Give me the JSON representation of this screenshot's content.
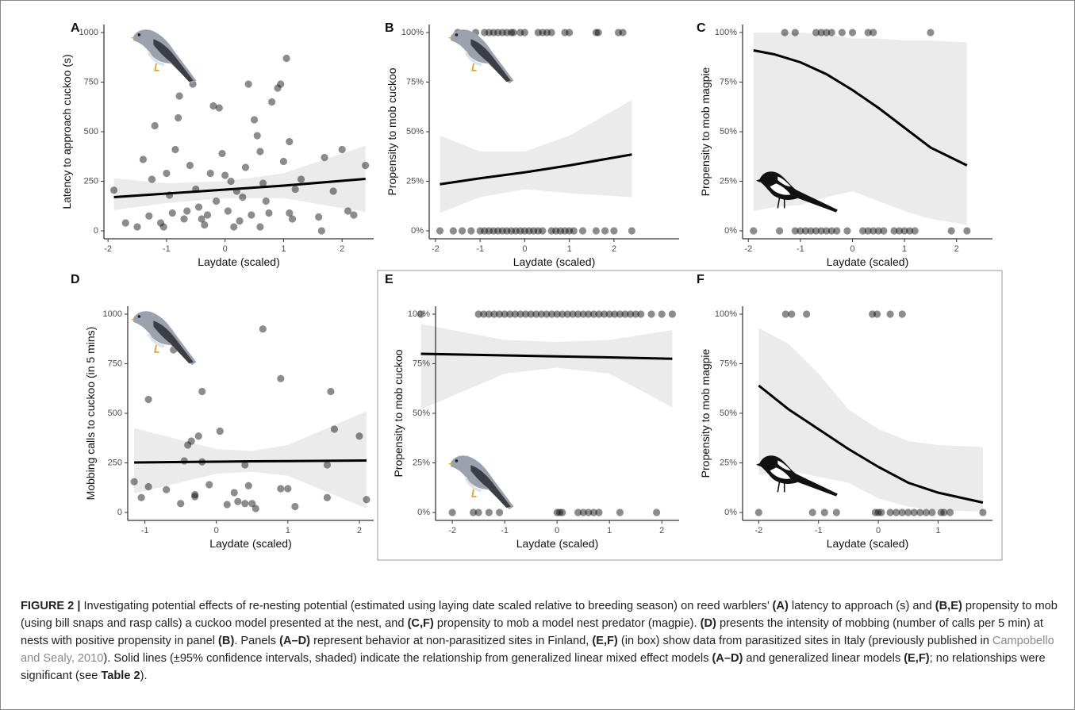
{
  "chart_data": [
    {
      "type": "scatter",
      "panel": "A",
      "xlabel": "Laydate (scaled)",
      "ylabel": "Latency to approach cuckoo (s)",
      "xlim": [
        -2.07,
        2.54
      ],
      "ylim": [
        -40,
        1040
      ],
      "xticks": [
        -2,
        -1,
        0,
        1,
        2
      ],
      "yticks": [
        0,
        250,
        500,
        750,
        1000
      ],
      "x": [
        -1.9,
        -1.7,
        -1.5,
        -1.4,
        -1.3,
        -1.2,
        -1.1,
        -1.05,
        -1.0,
        -0.95,
        -0.9,
        -0.85,
        -0.8,
        -0.78,
        -0.7,
        -0.6,
        -0.55,
        -0.5,
        -0.45,
        -0.4,
        -0.3,
        -0.25,
        -0.2,
        -0.1,
        -0.05,
        0.0,
        0.05,
        0.1,
        0.15,
        0.2,
        0.3,
        0.35,
        0.4,
        0.45,
        0.5,
        0.55,
        0.6,
        0.65,
        0.7,
        0.8,
        0.9,
        0.95,
        1.0,
        1.05,
        1.1,
        1.1,
        1.2,
        1.3,
        1.6,
        1.65,
        1.7,
        1.85,
        2.0,
        2.1,
        2.2,
        2.4,
        -0.35,
        0.25,
        -0.65,
        0.75,
        -0.15,
        0.6,
        1.15,
        -1.25
      ],
      "y": [
        205,
        40,
        20,
        360,
        75,
        530,
        40,
        20,
        290,
        180,
        90,
        410,
        570,
        680,
        60,
        330,
        740,
        210,
        120,
        60,
        80,
        290,
        630,
        620,
        390,
        280,
        100,
        250,
        20,
        200,
        170,
        320,
        740,
        80,
        560,
        480,
        400,
        240,
        150,
        650,
        720,
        740,
        350,
        870,
        450,
        90,
        210,
        260,
        70,
        0,
        370,
        200,
        410,
        100,
        80,
        330,
        30,
        50,
        100,
        90,
        150,
        20,
        60,
        260
      ],
      "fit_x": [
        -1.9,
        -1,
        0,
        1,
        2.4
      ],
      "fit_y": [
        170,
        188,
        208,
        228,
        262
      ],
      "fit_lower": [
        105,
        140,
        165,
        165,
        95
      ],
      "fit_upper": [
        265,
        240,
        250,
        290,
        430
      ]
    },
    {
      "type": "scatter",
      "panel": "B",
      "xlabel": "Laydate (scaled)",
      "ylabel": "Propensity to mob cuckoo",
      "xlim": [
        -2.14,
        3.46
      ],
      "ylim": [
        -4,
        104
      ],
      "xticks": [
        -2,
        -1,
        0,
        1,
        2
      ],
      "yticks": [
        {
          "value": 0,
          "label": "0%"
        },
        {
          "value": 25,
          "label": "25%"
        },
        {
          "value": 50,
          "label": "50%"
        },
        {
          "value": 75,
          "label": "75%"
        },
        {
          "value": 100,
          "label": "100%"
        }
      ],
      "x": [
        -1.5,
        -1.1,
        -0.9,
        -0.8,
        -0.7,
        -0.6,
        -0.5,
        -0.4,
        -0.3,
        -0.25,
        -0.1,
        0,
        0.3,
        0.4,
        0.5,
        0.6,
        0.9,
        1.0,
        1.6,
        1.65,
        2.1,
        2.2,
        -1.9,
        -1.6,
        -1.4,
        -1.2,
        -1.0,
        -0.9,
        -0.8,
        -0.7,
        -0.6,
        -0.5,
        -0.4,
        -0.3,
        -0.2,
        -0.1,
        0,
        0.1,
        0.2,
        0.3,
        0.4,
        0.6,
        0.7,
        0.8,
        0.9,
        1.0,
        1.1,
        1.3,
        1.6,
        1.8,
        2.0,
        2.4
      ],
      "y": [
        100,
        100,
        100,
        100,
        100,
        100,
        100,
        100,
        100,
        100,
        100,
        100,
        100,
        100,
        100,
        100,
        100,
        100,
        100,
        100,
        100,
        100,
        0,
        0,
        0,
        0,
        0,
        0,
        0,
        0,
        0,
        0,
        0,
        0,
        0,
        0,
        0,
        0,
        0,
        0,
        0,
        0,
        0,
        0,
        0,
        0,
        0,
        0,
        0,
        0,
        0,
        0
      ],
      "fit_x": [
        -1.9,
        -1,
        0,
        1,
        2.4
      ],
      "fit_y": [
        23.5,
        26.5,
        29.5,
        33,
        38.5
      ],
      "fit_lower": [
        9,
        17,
        21,
        19,
        17
      ],
      "fit_upper": [
        48,
        40,
        40,
        48,
        66
      ]
    },
    {
      "type": "scatter",
      "panel": "C",
      "xlabel": "Laydate (scaled)",
      "ylabel": "Propensity to mob magpie",
      "xlim": [
        -2.11,
        2.69
      ],
      "ylim": [
        -4,
        104
      ],
      "xticks": [
        -2,
        -1,
        0,
        1,
        2
      ],
      "yticks": [
        {
          "value": 0,
          "label": "0%"
        },
        {
          "value": 25,
          "label": "25%"
        },
        {
          "value": 50,
          "label": "50%"
        },
        {
          "value": 75,
          "label": "75%"
        },
        {
          "value": 100,
          "label": "100%"
        }
      ],
      "x": [
        -1.3,
        -1.1,
        -0.7,
        -0.6,
        -0.5,
        -0.4,
        -0.2,
        0,
        0.3,
        0.4,
        1.5,
        -1.9,
        -1.4,
        -1.1,
        -1.0,
        -0.9,
        -0.8,
        -0.7,
        -0.6,
        -0.5,
        -0.4,
        -0.3,
        -0.1,
        0.2,
        0.3,
        0.4,
        0.5,
        0.6,
        0.8,
        0.9,
        1.0,
        1.1,
        1.2,
        1.9,
        2.2
      ],
      "y": [
        100,
        100,
        100,
        100,
        100,
        100,
        100,
        100,
        100,
        100,
        100,
        0,
        0,
        0,
        0,
        0,
        0,
        0,
        0,
        0,
        0,
        0,
        0,
        0,
        0,
        0,
        0,
        0,
        0,
        0,
        0,
        0,
        0,
        0,
        0
      ],
      "fit_x": [
        -1.9,
        -1.5,
        -1,
        -0.5,
        0,
        0.5,
        1,
        1.5,
        2.2
      ],
      "fit_y": [
        91,
        89,
        85,
        79,
        71,
        62,
        52,
        42,
        33
      ],
      "fit_lower": [
        10,
        12,
        13,
        17,
        20,
        15,
        10,
        6,
        3
      ],
      "fit_upper": [
        100,
        100,
        100,
        99,
        97,
        97,
        96,
        96,
        95
      ]
    },
    {
      "type": "scatter",
      "panel": "D",
      "xlabel": "Laydate (scaled)",
      "ylabel": "Mobbing calls to cuckoo (in 5 mins)",
      "xlim": [
        -1.24,
        2.2
      ],
      "ylim": [
        -40,
        1040
      ],
      "xticks": [
        -1,
        0,
        1,
        2
      ],
      "yticks": [
        0,
        250,
        500,
        750,
        1000
      ],
      "x": [
        -1.15,
        -1.05,
        -0.95,
        -0.95,
        -0.7,
        -0.6,
        -0.5,
        -0.45,
        -0.4,
        -0.35,
        -0.3,
        -0.3,
        -0.25,
        -0.2,
        -0.2,
        -0.1,
        0.05,
        0.15,
        0.25,
        0.3,
        0.4,
        0.4,
        0.45,
        0.5,
        0.55,
        0.65,
        0.9,
        0.9,
        1.0,
        1.1,
        1.55,
        1.55,
        1.6,
        1.65,
        2.0,
        2.1
      ],
      "y": [
        155,
        75,
        570,
        130,
        115,
        820,
        45,
        260,
        340,
        360,
        90,
        80,
        385,
        610,
        255,
        140,
        410,
        40,
        100,
        55,
        240,
        45,
        135,
        45,
        20,
        925,
        675,
        120,
        120,
        30,
        75,
        240,
        610,
        420,
        385,
        65
      ],
      "fit_x": [
        -1.15,
        0,
        0.5,
        1,
        2.1
      ],
      "fit_y": [
        252,
        256,
        258,
        259,
        262
      ],
      "fit_lower": [
        95,
        195,
        205,
        185,
        20
      ],
      "fit_upper": [
        425,
        320,
        310,
        340,
        510
      ]
    },
    {
      "type": "scatter",
      "panel": "E",
      "xlabel": "Laydate (scaled)",
      "ylabel": "Propensity to mob cuckoo",
      "xlim": [
        -2.32,
        2.33
      ],
      "ylim": [
        -4,
        104
      ],
      "xticks": [
        -2,
        -1,
        0,
        1,
        2
      ],
      "yticks": [
        {
          "value": 0,
          "label": "0%"
        },
        {
          "value": 25,
          "label": "25%"
        },
        {
          "value": 50,
          "label": "50%"
        },
        {
          "value": 75,
          "label": "75%"
        },
        {
          "value": 100,
          "label": "100%"
        }
      ],
      "x": [
        -2.6,
        -1.5,
        -1.4,
        -1.3,
        -1.2,
        -1.1,
        -1.0,
        -0.9,
        -0.8,
        -0.7,
        -0.6,
        -0.5,
        -0.4,
        -0.3,
        -0.2,
        -0.1,
        0,
        0.1,
        0.2,
        0.3,
        0.4,
        0.5,
        0.6,
        0.7,
        0.8,
        0.9,
        1.0,
        1.1,
        1.2,
        1.3,
        1.4,
        1.5,
        1.6,
        1.8,
        2.0,
        2.2,
        -2.0,
        -1.6,
        -1.5,
        -1.3,
        -1.1,
        0,
        0.05,
        0.1,
        0.4,
        0.5,
        0.6,
        0.7,
        0.8,
        1.2,
        1.9
      ],
      "y": [
        100,
        100,
        100,
        100,
        100,
        100,
        100,
        100,
        100,
        100,
        100,
        100,
        100,
        100,
        100,
        100,
        100,
        100,
        100,
        100,
        100,
        100,
        100,
        100,
        100,
        100,
        100,
        100,
        100,
        100,
        100,
        100,
        100,
        100,
        100,
        100,
        0,
        0,
        0,
        0,
        0,
        0,
        0,
        0,
        0,
        0,
        0,
        0,
        0,
        0,
        0
      ],
      "fit_x": [
        -2.6,
        -1,
        0,
        1,
        2.2
      ],
      "fit_y": [
        80,
        79.2,
        78.7,
        78.2,
        77.5
      ],
      "fit_lower": [
        52,
        70,
        73,
        70,
        53
      ],
      "fit_upper": [
        95,
        87,
        86,
        87,
        92
      ]
    },
    {
      "type": "scatter",
      "panel": "F",
      "xlabel": "Laydate (scaled)",
      "ylabel": "Propensity to mob magpie",
      "xlim": [
        -2.27,
        1.91
      ],
      "ylim": [
        -4,
        104
      ],
      "xticks": [
        -2,
        -1,
        0,
        1
      ],
      "yticks": [
        {
          "value": 0,
          "label": "0%"
        },
        {
          "value": 25,
          "label": "25%"
        },
        {
          "value": 50,
          "label": "50%"
        },
        {
          "value": 75,
          "label": "75%"
        },
        {
          "value": 100,
          "label": "100%"
        }
      ],
      "x": [
        -1.55,
        -1.45,
        -1.2,
        -0.1,
        -0.02,
        0.2,
        0.4,
        -2,
        -1.1,
        -0.9,
        -0.7,
        -0.05,
        0,
        0.05,
        0.2,
        0.3,
        0.4,
        0.5,
        0.6,
        0.7,
        0.8,
        0.9,
        1.05,
        1.1,
        1.2,
        1.75
      ],
      "y": [
        100,
        100,
        100,
        100,
        100,
        100,
        100,
        0,
        0,
        0,
        0,
        0,
        0,
        0,
        0,
        0,
        0,
        0,
        0,
        0,
        0,
        0,
        0,
        0,
        0,
        0
      ],
      "fit_x": [
        -2,
        -1.5,
        -1,
        -0.5,
        0,
        0.5,
        1,
        1.75
      ],
      "fit_y": [
        64,
        52,
        42,
        32,
        23,
        15,
        10,
        5
      ],
      "fit_lower": [
        19,
        21,
        18,
        15,
        7,
        3,
        1,
        0.5
      ],
      "fit_upper": [
        93,
        85,
        70,
        52,
        42,
        36,
        34,
        33
      ]
    }
  ],
  "caption": {
    "segments": [
      "FIGURE 2 |",
      " Investigating potential effects of re-nesting potential (estimated using laying date scaled relative to breeding season) on reed warblers’ ",
      "(A)",
      " latency to approach (s) and ",
      "(B,E)",
      " propensity to mob (using bill snaps and rasp calls) a cuckoo model presented at the nest, and ",
      "(C,F)",
      " propensity to mob a model nest predator (magpie). ",
      "(D)",
      " presents the intensity of mobbing (number of calls per 5 min) at nests with positive propensity in panel ",
      "(B)",
      ". Panels ",
      "(A–D)",
      " represent behavior at non-parasitized sites in Finland, ",
      "(E,F)",
      " (in box) show data from parasitized sites in Italy (previously published in ",
      "Campobello and Sealy, 2010",
      "). Solid lines (±95% confidence intervals, shaded) indicate the relationship from generalized linear mixed effect models ",
      "(A–D)",
      " and generalized linear models ",
      "(E,F)",
      "; no relationships were significant (see ",
      "Table 2",
      ")."
    ]
  }
}
